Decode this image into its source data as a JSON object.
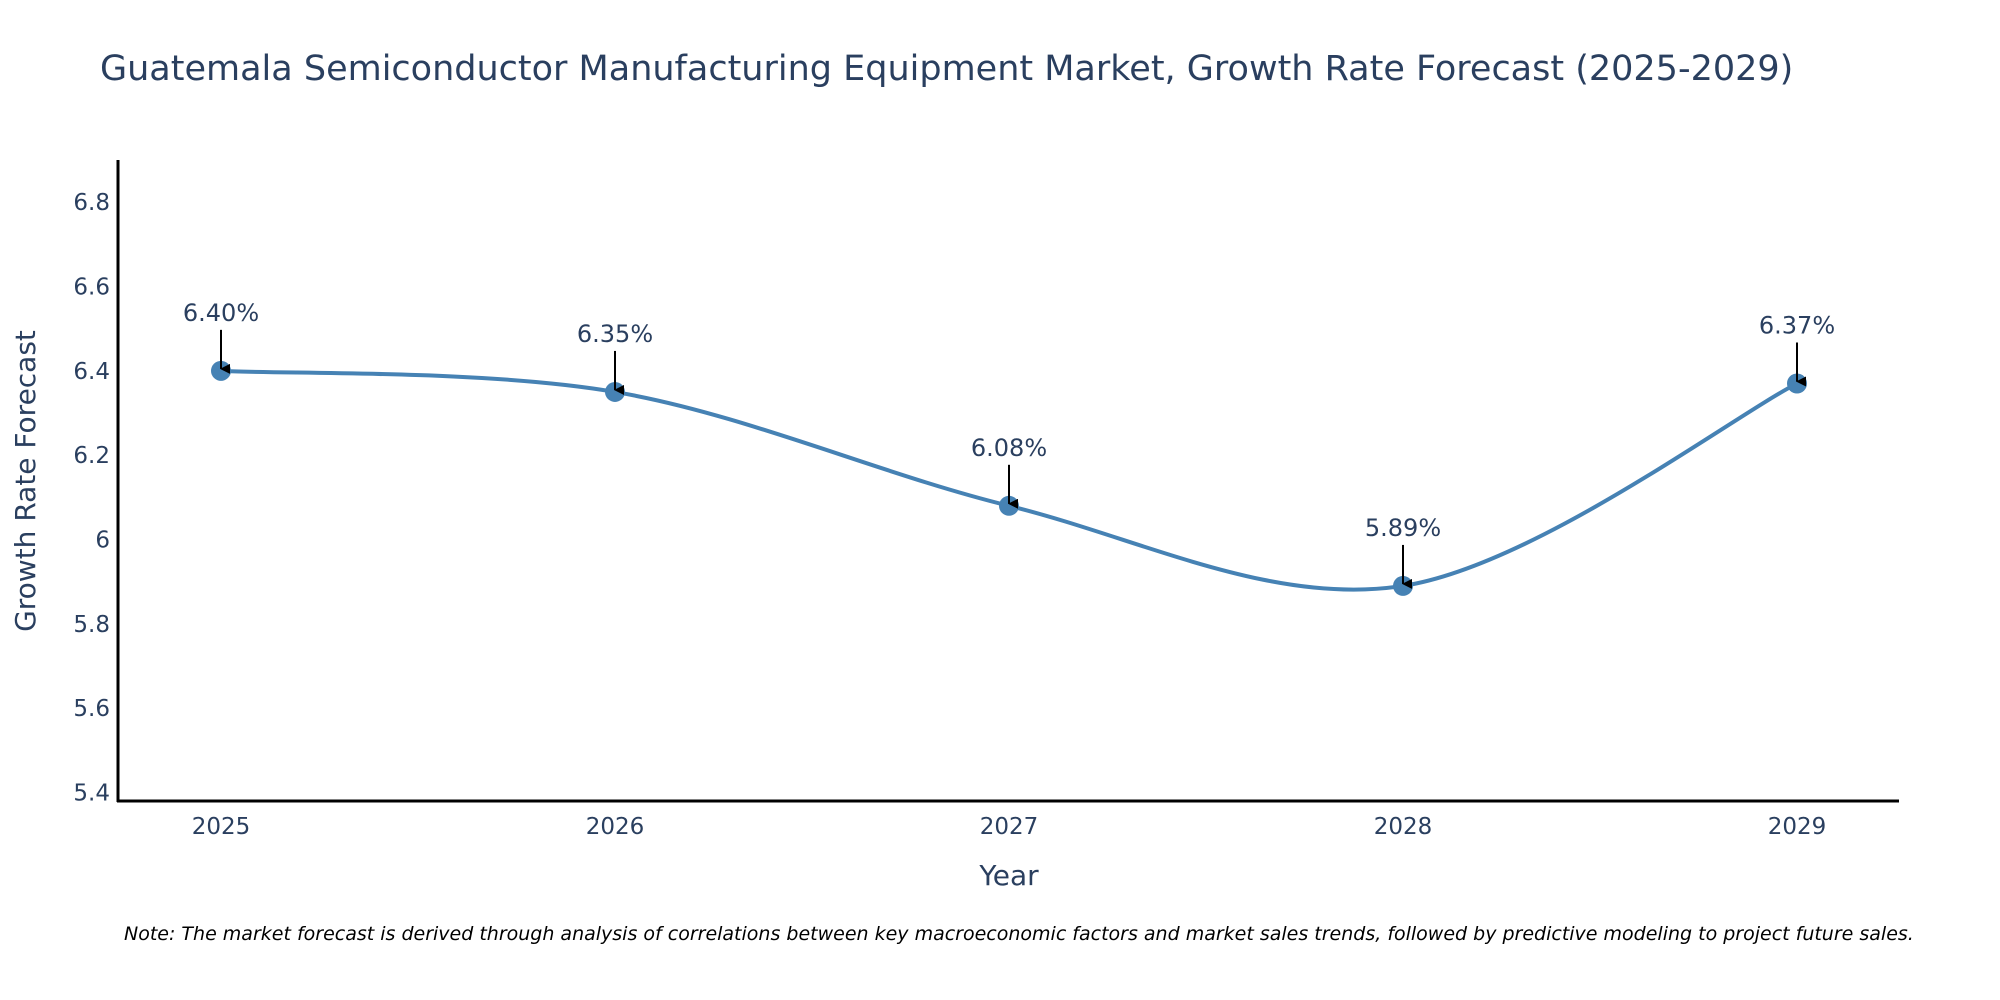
{
  "chart_data": {
    "type": "line",
    "title": "Guatemala Semiconductor Manufacturing Equipment Market, Growth Rate Forecast (2025-2029)",
    "xlabel": "Year",
    "ylabel": "Growth Rate Forecast",
    "categories": [
      "2025",
      "2026",
      "2027",
      "2028",
      "2029"
    ],
    "values": [
      6.4,
      6.35,
      6.08,
      5.89,
      6.37
    ],
    "data_labels": [
      "6.40%",
      "6.35%",
      "6.08%",
      "5.89%",
      "6.37%"
    ],
    "ylim": [
      5.38,
      6.9
    ],
    "y_ticks": [
      5.4,
      5.6,
      5.8,
      6.0,
      6.2,
      6.4,
      6.6,
      6.8
    ],
    "y_tick_labels": [
      "5.4",
      "5.6",
      "5.8",
      "6",
      "6.2",
      "6.4",
      "6.6",
      "6.8"
    ],
    "line_shape": "spline",
    "grid": false,
    "note": "Note: The market forecast is derived through analysis of correlations between key macroeconomic factors and market sales trends, followed by predictive modeling to project future sales.",
    "colors": {
      "line": "#4682b4",
      "marker": "#4682b4",
      "axis": "#000000",
      "text": "#2a3f5f"
    }
  }
}
